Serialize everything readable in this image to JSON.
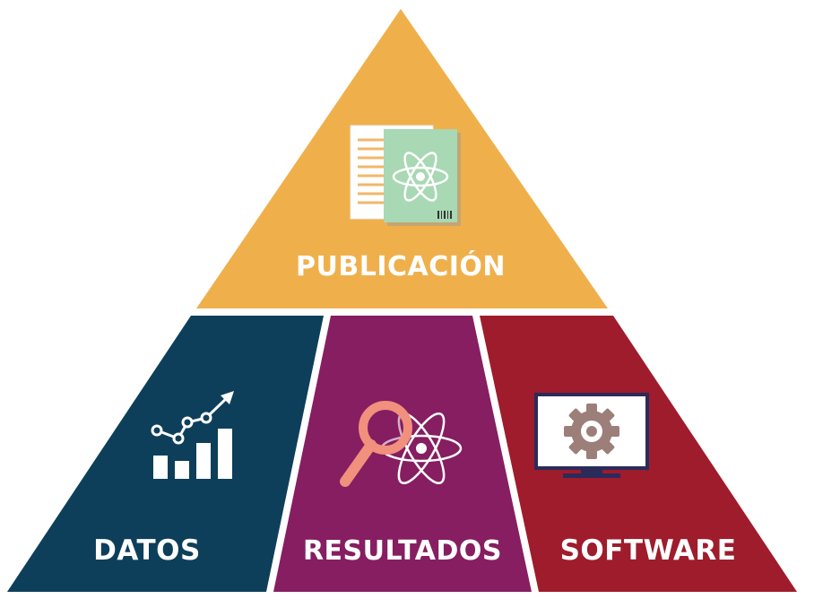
{
  "diagram": {
    "type": "pyramid",
    "top": {
      "label": "PUBLICACIÓN",
      "color": "#efb04c",
      "icon": "publication-book-atom-icon"
    },
    "base": [
      {
        "label": "DATOS",
        "color": "#0d3f5a",
        "icon": "chart-growth-icon"
      },
      {
        "label": "RESULTADOS",
        "color": "#861e61",
        "icon": "magnifier-atom-icon"
      },
      {
        "label": "SOFTWARE",
        "color": "#9e1c2c",
        "icon": "monitor-gear-icon"
      }
    ]
  }
}
